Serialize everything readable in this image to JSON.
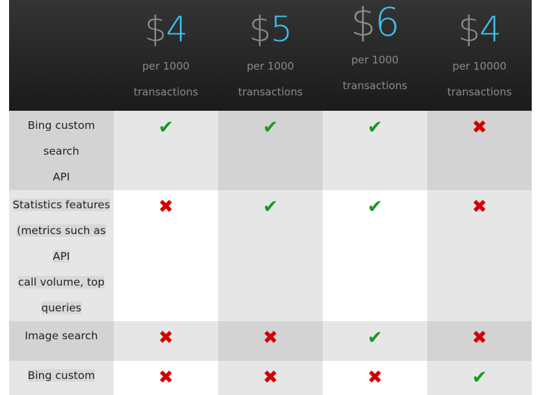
{
  "plans": [
    {
      "currency": "$",
      "amount": "4",
      "per": "per 1000",
      "unit": "transactions"
    },
    {
      "currency": "$",
      "amount": "5",
      "per": "per 1000",
      "unit": "transactions"
    },
    {
      "currency": "$",
      "amount": "6",
      "per": "per 1000",
      "unit": "transactions"
    },
    {
      "currency": "$",
      "amount": "4",
      "per": "per 10000",
      "unit": "transactions"
    }
  ],
  "features": [
    {
      "label": [
        "Bing custom search",
        "API"
      ],
      "values": [
        true,
        true,
        true,
        false
      ]
    },
    {
      "label": [
        "Statistics features",
        "(metrics such as API",
        "call volume, top",
        "queries"
      ],
      "values": [
        false,
        true,
        true,
        false
      ]
    },
    {
      "label": [
        "Image search"
      ],
      "values": [
        false,
        false,
        true,
        false
      ]
    },
    {
      "label": [
        "Bing custom"
      ],
      "values": [
        false,
        false,
        false,
        true
      ]
    }
  ],
  "icons": {
    "yes": "check-icon",
    "no": "cross-icon"
  },
  "colors": {
    "accent": "#3fc1ee",
    "check": "#169a1e",
    "cross": "#d40000"
  }
}
